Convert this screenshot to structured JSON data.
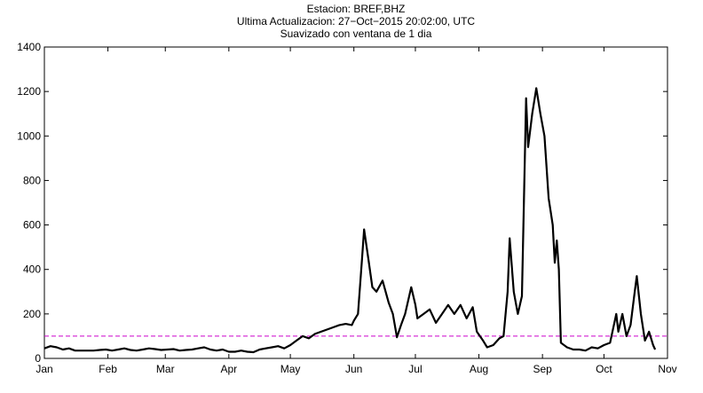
{
  "chart_data": {
    "type": "line",
    "title": "Estacion: BREF,BHZ",
    "subtitle": "Ultima Actualizacion: 27−Oct−2015 20:02:00, UTC",
    "note": "Suavizado con ventana de 1 dia",
    "xlim": [
      0,
      304
    ],
    "xticks": [
      {
        "value": 0,
        "label": "Jan"
      },
      {
        "value": 31,
        "label": "Feb"
      },
      {
        "value": 59,
        "label": "Mar"
      },
      {
        "value": 90,
        "label": "Apr"
      },
      {
        "value": 120,
        "label": "May"
      },
      {
        "value": 151,
        "label": "Jun"
      },
      {
        "value": 181,
        "label": "Jul"
      },
      {
        "value": 212,
        "label": "Aug"
      },
      {
        "value": 243,
        "label": "Sep"
      },
      {
        "value": 273,
        "label": "Oct"
      },
      {
        "value": 304,
        "label": "Nov"
      }
    ],
    "ylim": [
      0,
      1400
    ],
    "yticks": [
      0,
      200,
      400,
      600,
      800,
      1000,
      1200,
      1400
    ],
    "reference_line": {
      "value": 100,
      "color": "#cc00cc"
    },
    "series": [
      {
        "color": "#000000",
        "x": [
          0,
          3,
          6,
          9,
          12,
          15,
          18,
          21,
          24,
          27,
          30,
          33,
          36,
          39,
          42,
          45,
          48,
          51,
          54,
          57,
          60,
          63,
          66,
          69,
          72,
          75,
          78,
          81,
          84,
          87,
          90,
          93,
          96,
          99,
          102,
          105,
          108,
          111,
          114,
          117,
          120,
          123,
          126,
          129,
          132,
          135,
          138,
          141,
          144,
          147,
          150,
          151,
          153,
          155,
          156,
          158,
          160,
          162,
          165,
          168,
          170,
          172,
          174,
          176,
          179,
          181,
          182,
          185,
          188,
          191,
          194,
          197,
          200,
          203,
          206,
          209,
          211,
          214,
          216,
          219,
          222,
          224,
          226,
          227,
          229,
          231,
          233,
          235,
          236,
          238,
          240,
          242,
          244,
          246,
          248,
          249,
          250,
          251,
          252,
          255,
          258,
          261,
          264,
          267,
          270,
          273,
          276,
          279,
          280,
          282,
          284,
          286,
          288,
          289,
          291,
          293,
          295,
          297,
          298
        ],
        "values": [
          45,
          55,
          50,
          40,
          45,
          35,
          35,
          35,
          35,
          38,
          40,
          35,
          40,
          45,
          38,
          35,
          40,
          45,
          42,
          38,
          40,
          42,
          35,
          38,
          40,
          45,
          50,
          40,
          35,
          40,
          30,
          30,
          35,
          30,
          28,
          40,
          45,
          50,
          55,
          45,
          60,
          80,
          100,
          90,
          110,
          120,
          130,
          140,
          150,
          155,
          150,
          170,
          200,
          450,
          580,
          450,
          320,
          300,
          350,
          250,
          200,
          95,
          150,
          200,
          320,
          240,
          180,
          200,
          220,
          160,
          200,
          240,
          200,
          240,
          180,
          230,
          120,
          80,
          50,
          60,
          90,
          100,
          300,
          540,
          300,
          200,
          280,
          1170,
          950,
          1100,
          1215,
          1100,
          1000,
          720,
          600,
          430,
          530,
          400,
          70,
          50,
          40,
          40,
          35,
          50,
          45,
          60,
          70,
          200,
          120,
          200,
          100,
          150,
          300,
          370,
          200,
          80,
          120,
          60,
          40
        ]
      }
    ]
  }
}
